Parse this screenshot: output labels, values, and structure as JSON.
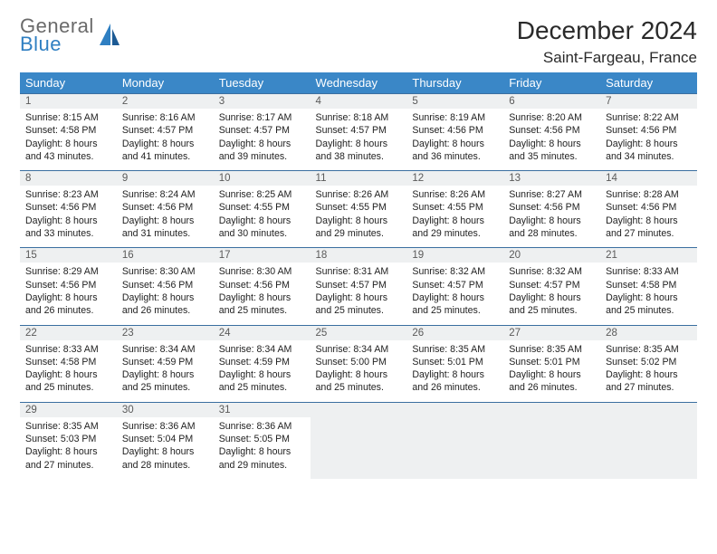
{
  "logo": {
    "line1": "General",
    "line2": "Blue"
  },
  "title": "December 2024",
  "location": "Saint-Fargeau, France",
  "colors": {
    "header_bg": "#3a87c7",
    "header_text": "#ffffff",
    "daynum_bg": "#eef0f1",
    "border": "#3a6fa0",
    "logo_gray": "#6a6a6a",
    "logo_blue": "#2f7fc2"
  },
  "weekdays": [
    "Sunday",
    "Monday",
    "Tuesday",
    "Wednesday",
    "Thursday",
    "Friday",
    "Saturday"
  ],
  "weeks": [
    [
      {
        "n": "1",
        "sr": "8:15 AM",
        "ss": "4:58 PM",
        "dl": "8 hours and 43 minutes."
      },
      {
        "n": "2",
        "sr": "8:16 AM",
        "ss": "4:57 PM",
        "dl": "8 hours and 41 minutes."
      },
      {
        "n": "3",
        "sr": "8:17 AM",
        "ss": "4:57 PM",
        "dl": "8 hours and 39 minutes."
      },
      {
        "n": "4",
        "sr": "8:18 AM",
        "ss": "4:57 PM",
        "dl": "8 hours and 38 minutes."
      },
      {
        "n": "5",
        "sr": "8:19 AM",
        "ss": "4:56 PM",
        "dl": "8 hours and 36 minutes."
      },
      {
        "n": "6",
        "sr": "8:20 AM",
        "ss": "4:56 PM",
        "dl": "8 hours and 35 minutes."
      },
      {
        "n": "7",
        "sr": "8:22 AM",
        "ss": "4:56 PM",
        "dl": "8 hours and 34 minutes."
      }
    ],
    [
      {
        "n": "8",
        "sr": "8:23 AM",
        "ss": "4:56 PM",
        "dl": "8 hours and 33 minutes."
      },
      {
        "n": "9",
        "sr": "8:24 AM",
        "ss": "4:56 PM",
        "dl": "8 hours and 31 minutes."
      },
      {
        "n": "10",
        "sr": "8:25 AM",
        "ss": "4:55 PM",
        "dl": "8 hours and 30 minutes."
      },
      {
        "n": "11",
        "sr": "8:26 AM",
        "ss": "4:55 PM",
        "dl": "8 hours and 29 minutes."
      },
      {
        "n": "12",
        "sr": "8:26 AM",
        "ss": "4:55 PM",
        "dl": "8 hours and 29 minutes."
      },
      {
        "n": "13",
        "sr": "8:27 AM",
        "ss": "4:56 PM",
        "dl": "8 hours and 28 minutes."
      },
      {
        "n": "14",
        "sr": "8:28 AM",
        "ss": "4:56 PM",
        "dl": "8 hours and 27 minutes."
      }
    ],
    [
      {
        "n": "15",
        "sr": "8:29 AM",
        "ss": "4:56 PM",
        "dl": "8 hours and 26 minutes."
      },
      {
        "n": "16",
        "sr": "8:30 AM",
        "ss": "4:56 PM",
        "dl": "8 hours and 26 minutes."
      },
      {
        "n": "17",
        "sr": "8:30 AM",
        "ss": "4:56 PM",
        "dl": "8 hours and 25 minutes."
      },
      {
        "n": "18",
        "sr": "8:31 AM",
        "ss": "4:57 PM",
        "dl": "8 hours and 25 minutes."
      },
      {
        "n": "19",
        "sr": "8:32 AM",
        "ss": "4:57 PM",
        "dl": "8 hours and 25 minutes."
      },
      {
        "n": "20",
        "sr": "8:32 AM",
        "ss": "4:57 PM",
        "dl": "8 hours and 25 minutes."
      },
      {
        "n": "21",
        "sr": "8:33 AM",
        "ss": "4:58 PM",
        "dl": "8 hours and 25 minutes."
      }
    ],
    [
      {
        "n": "22",
        "sr": "8:33 AM",
        "ss": "4:58 PM",
        "dl": "8 hours and 25 minutes."
      },
      {
        "n": "23",
        "sr": "8:34 AM",
        "ss": "4:59 PM",
        "dl": "8 hours and 25 minutes."
      },
      {
        "n": "24",
        "sr": "8:34 AM",
        "ss": "4:59 PM",
        "dl": "8 hours and 25 minutes."
      },
      {
        "n": "25",
        "sr": "8:34 AM",
        "ss": "5:00 PM",
        "dl": "8 hours and 25 minutes."
      },
      {
        "n": "26",
        "sr": "8:35 AM",
        "ss": "5:01 PM",
        "dl": "8 hours and 26 minutes."
      },
      {
        "n": "27",
        "sr": "8:35 AM",
        "ss": "5:01 PM",
        "dl": "8 hours and 26 minutes."
      },
      {
        "n": "28",
        "sr": "8:35 AM",
        "ss": "5:02 PM",
        "dl": "8 hours and 27 minutes."
      }
    ],
    [
      {
        "n": "29",
        "sr": "8:35 AM",
        "ss": "5:03 PM",
        "dl": "8 hours and 27 minutes."
      },
      {
        "n": "30",
        "sr": "8:36 AM",
        "ss": "5:04 PM",
        "dl": "8 hours and 28 minutes."
      },
      {
        "n": "31",
        "sr": "8:36 AM",
        "ss": "5:05 PM",
        "dl": "8 hours and 29 minutes."
      },
      null,
      null,
      null,
      null
    ]
  ],
  "labels": {
    "sunrise": "Sunrise:",
    "sunset": "Sunset:",
    "daylight": "Daylight:"
  }
}
